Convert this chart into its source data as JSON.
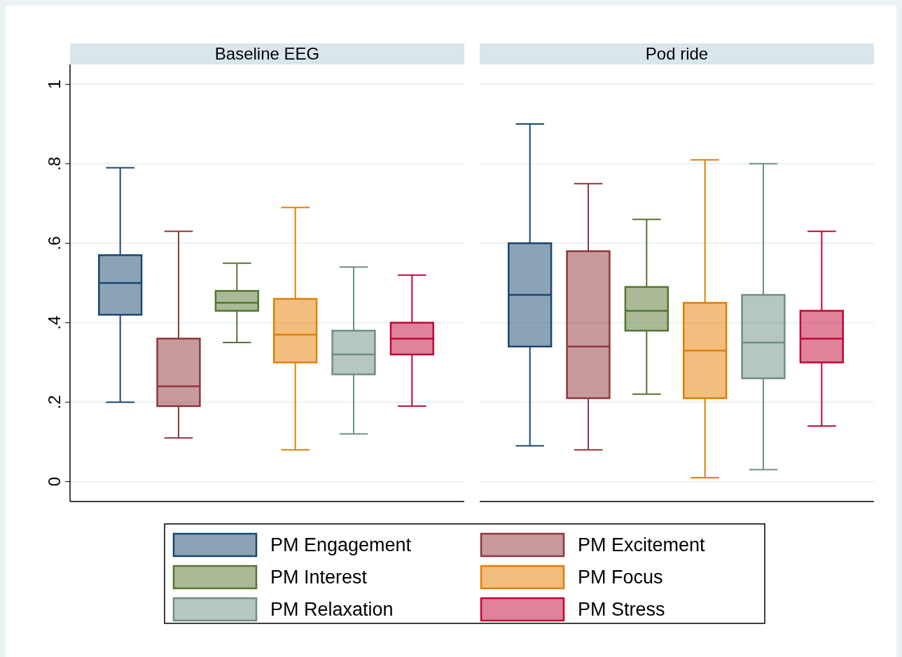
{
  "chart_data": {
    "type": "box",
    "categories": [
      "Baseline EEG",
      "Pod ride"
    ],
    "ylim": [
      -0.05,
      1.05
    ],
    "yticks": [
      {
        "value": 0,
        "label": "0"
      },
      {
        "value": 0.2,
        "label": ".2"
      },
      {
        "value": 0.4,
        "label": ".4"
      },
      {
        "value": 0.6,
        "label": ".6"
      },
      {
        "value": 0.8,
        "label": ".8"
      },
      {
        "value": 1,
        "label": "1"
      }
    ],
    "grid": "y",
    "legend": "bottom",
    "series": [
      {
        "name": "PM Engagement",
        "color": "#1a476f",
        "boxes": [
          {
            "low": 0.2,
            "q1": 0.42,
            "median": 0.5,
            "q3": 0.57,
            "high": 0.79
          },
          {
            "low": 0.09,
            "q1": 0.34,
            "median": 0.47,
            "q3": 0.6,
            "high": 0.9
          }
        ]
      },
      {
        "name": "PM Excitement",
        "color": "#90353b",
        "boxes": [
          {
            "low": 0.11,
            "q1": 0.19,
            "median": 0.24,
            "q3": 0.36,
            "high": 0.63
          },
          {
            "low": 0.08,
            "q1": 0.21,
            "median": 0.34,
            "q3": 0.58,
            "high": 0.75
          }
        ]
      },
      {
        "name": "PM Interest",
        "color": "#55752f",
        "boxes": [
          {
            "low": 0.35,
            "q1": 0.43,
            "median": 0.45,
            "q3": 0.48,
            "high": 0.55
          },
          {
            "low": 0.22,
            "q1": 0.38,
            "median": 0.43,
            "q3": 0.49,
            "high": 0.66
          }
        ]
      },
      {
        "name": "PM Focus",
        "color": "#e37e00",
        "boxes": [
          {
            "low": 0.08,
            "q1": 0.3,
            "median": 0.37,
            "q3": 0.46,
            "high": 0.69
          },
          {
            "low": 0.01,
            "q1": 0.21,
            "median": 0.33,
            "q3": 0.45,
            "high": 0.81
          }
        ]
      },
      {
        "name": "PM Relaxation",
        "color": "#6e8e84",
        "boxes": [
          {
            "low": 0.12,
            "q1": 0.27,
            "median": 0.32,
            "q3": 0.38,
            "high": 0.54
          },
          {
            "low": 0.03,
            "q1": 0.26,
            "median": 0.35,
            "q3": 0.47,
            "high": 0.8
          }
        ]
      },
      {
        "name": "PM Stress",
        "color": "#c10534",
        "boxes": [
          {
            "low": 0.19,
            "q1": 0.32,
            "median": 0.36,
            "q3": 0.4,
            "high": 0.52
          },
          {
            "low": 0.14,
            "q1": 0.3,
            "median": 0.36,
            "q3": 0.43,
            "high": 0.63
          }
        ]
      }
    ]
  }
}
